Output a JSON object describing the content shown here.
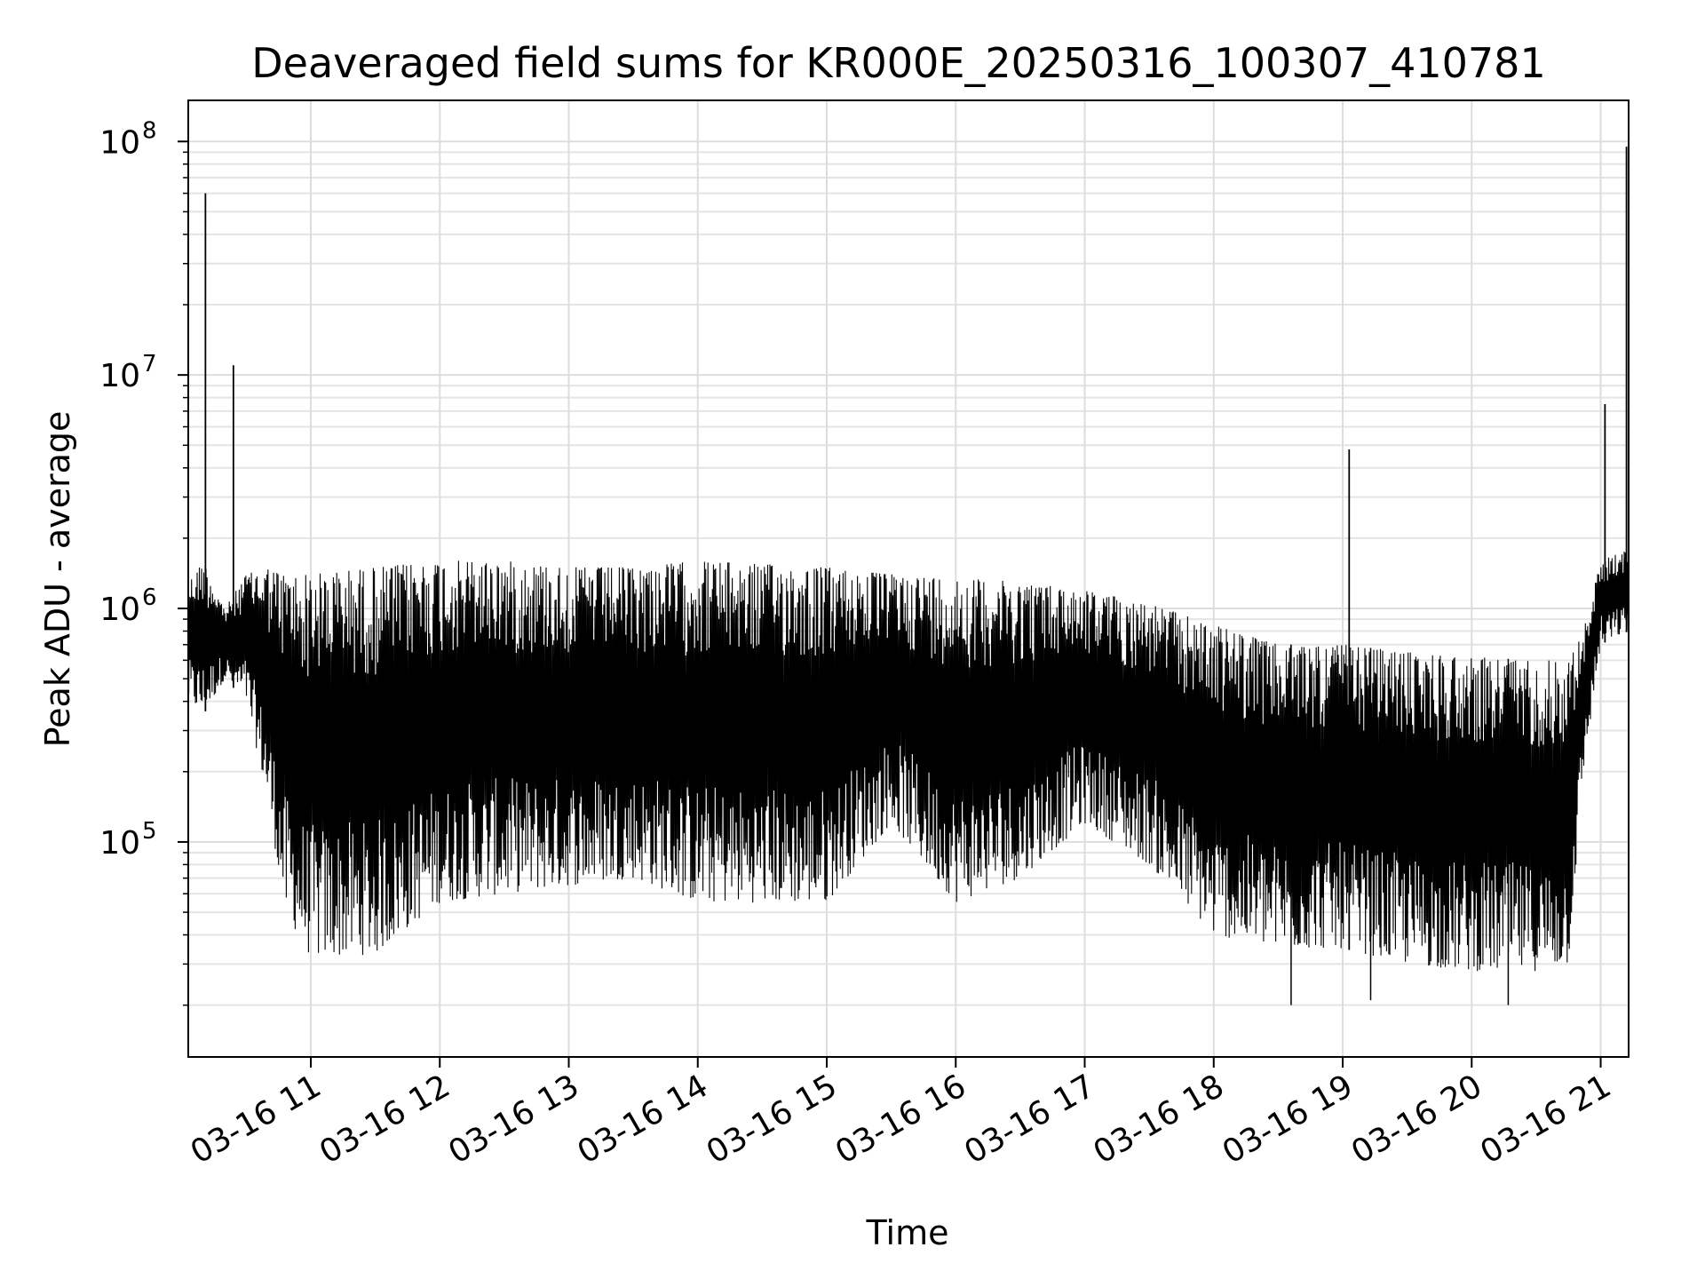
{
  "chart_data": {
    "type": "line",
    "title": "Deaveraged field sums for KR000E_20250316_100307_410781",
    "xlabel": "Time",
    "ylabel": "Peak ADU - average",
    "yscale": "log",
    "ylim": [
      12000,
      150000000
    ],
    "xlim": [
      "2025-03-16 10:03",
      "2025-03-16 21:13"
    ],
    "grid": true,
    "grid_minor": true,
    "line_color": "#000000",
    "x_ticks": [
      {
        "t": "2025-03-16 11:00",
        "label": "03-16 11"
      },
      {
        "t": "2025-03-16 12:00",
        "label": "03-16 12"
      },
      {
        "t": "2025-03-16 13:00",
        "label": "03-16 13"
      },
      {
        "t": "2025-03-16 14:00",
        "label": "03-16 14"
      },
      {
        "t": "2025-03-16 15:00",
        "label": "03-16 15"
      },
      {
        "t": "2025-03-16 16:00",
        "label": "03-16 16"
      },
      {
        "t": "2025-03-16 17:00",
        "label": "03-16 17"
      },
      {
        "t": "2025-03-16 18:00",
        "label": "03-16 18"
      },
      {
        "t": "2025-03-16 19:00",
        "label": "03-16 19"
      },
      {
        "t": "2025-03-16 20:00",
        "label": "03-16 20"
      },
      {
        "t": "2025-03-16 21:00",
        "label": "03-16 21"
      }
    ],
    "y_ticks": [
      {
        "value": 100000,
        "base": "10",
        "exp": "5"
      },
      {
        "value": 1000000,
        "base": "10",
        "exp": "6"
      },
      {
        "value": 10000000,
        "base": "10",
        "exp": "7"
      },
      {
        "value": 100000000,
        "base": "10",
        "exp": "8"
      }
    ],
    "series": [
      {
        "envelope": [
          {
            "t": "2025-03-16 10:03",
            "low": 400000,
            "high": 1300000
          },
          {
            "t": "2025-03-16 10:10",
            "low": 350000,
            "high": 1600000
          },
          {
            "t": "2025-03-16 10:20",
            "low": 500000,
            "high": 1000000
          },
          {
            "t": "2025-03-16 10:30",
            "low": 400000,
            "high": 1400000
          },
          {
            "t": "2025-03-16 10:40",
            "low": 150000,
            "high": 1500000
          },
          {
            "t": "2025-03-16 10:48",
            "low": 50000,
            "high": 1400000
          },
          {
            "t": "2025-03-16 11:00",
            "low": 32000,
            "high": 1400000
          },
          {
            "t": "2025-03-16 11:30",
            "low": 33000,
            "high": 1500000
          },
          {
            "t": "2025-03-16 12:00",
            "low": 55000,
            "high": 1600000
          },
          {
            "t": "2025-03-16 12:30",
            "low": 60000,
            "high": 1600000
          },
          {
            "t": "2025-03-16 13:00",
            "low": 65000,
            "high": 1500000
          },
          {
            "t": "2025-03-16 13:30",
            "low": 70000,
            "high": 1500000
          },
          {
            "t": "2025-03-16 14:00",
            "low": 55000,
            "high": 1600000
          },
          {
            "t": "2025-03-16 14:30",
            "low": 55000,
            "high": 1550000
          },
          {
            "t": "2025-03-16 15:00",
            "low": 55000,
            "high": 1500000
          },
          {
            "t": "2025-03-16 15:30",
            "low": 120000,
            "high": 1400000
          },
          {
            "t": "2025-03-16 16:00",
            "low": 55000,
            "high": 1350000
          },
          {
            "t": "2025-03-16 16:30",
            "low": 70000,
            "high": 1300000
          },
          {
            "t": "2025-03-16 17:00",
            "low": 120000,
            "high": 1200000
          },
          {
            "t": "2025-03-16 17:30",
            "low": 80000,
            "high": 1050000
          },
          {
            "t": "2025-03-16 18:00",
            "low": 40000,
            "high": 850000
          },
          {
            "t": "2025-03-16 18:30",
            "low": 35000,
            "high": 700000
          },
          {
            "t": "2025-03-16 19:00",
            "low": 35000,
            "high": 700000
          },
          {
            "t": "2025-03-16 19:30",
            "low": 30000,
            "high": 650000
          },
          {
            "t": "2025-03-16 20:00",
            "low": 28000,
            "high": 620000
          },
          {
            "t": "2025-03-16 20:30",
            "low": 28000,
            "high": 600000
          },
          {
            "t": "2025-03-16 20:45",
            "low": 30000,
            "high": 600000
          },
          {
            "t": "2025-03-16 20:52",
            "low": 200000,
            "high": 800000
          },
          {
            "t": "2025-03-16 21:00",
            "low": 700000,
            "high": 1600000
          },
          {
            "t": "2025-03-16 21:13",
            "low": 800000,
            "high": 1800000
          }
        ],
        "spikes": [
          {
            "t": "2025-03-16 10:11",
            "value": 60000000
          },
          {
            "t": "2025-03-16 10:24",
            "value": 11000000
          },
          {
            "t": "2025-03-16 19:03",
            "value": 4800000
          },
          {
            "t": "2025-03-16 21:02",
            "value": 7500000
          },
          {
            "t": "2025-03-16 21:12",
            "value": 95000000
          }
        ],
        "deep_minima": [
          {
            "t": "2025-03-16 18:36",
            "value": 20000
          },
          {
            "t": "2025-03-16 20:17",
            "value": 20000
          },
          {
            "t": "2025-03-16 19:13",
            "value": 21000
          }
        ]
      }
    ]
  }
}
